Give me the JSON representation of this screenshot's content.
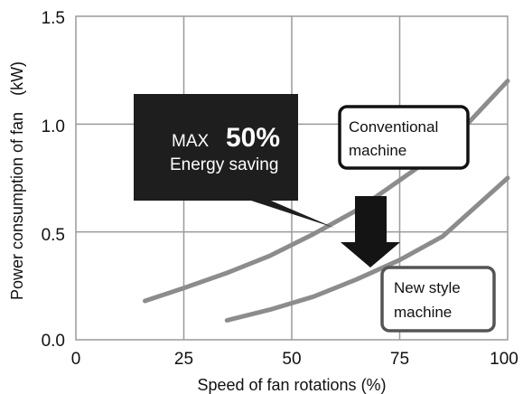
{
  "chart_data": {
    "type": "line",
    "title": "",
    "xlabel": "Speed of fan rotations (%)",
    "ylabel": "Power consumption of fan　(kW)",
    "xlim": [
      0,
      100
    ],
    "ylim": [
      0,
      1.5
    ],
    "x_ticks": [
      "0",
      "25",
      "50",
      "75",
      "100"
    ],
    "y_ticks": [
      "0.0",
      "0.5",
      "1.0",
      "1.5"
    ],
    "grid": true,
    "series": [
      {
        "name": "Conventional machine",
        "color": "#8c8c8c",
        "x": [
          16,
          25,
          35,
          45,
          55,
          65,
          75,
          85,
          100
        ],
        "y": [
          0.18,
          0.24,
          0.31,
          0.39,
          0.49,
          0.6,
          0.74,
          0.88,
          1.2
        ]
      },
      {
        "name": "New style machine",
        "color": "#8c8c8c",
        "x": [
          35,
          45,
          55,
          65,
          75,
          85,
          100
        ],
        "y": [
          0.09,
          0.14,
          0.2,
          0.28,
          0.37,
          0.48,
          0.75
        ]
      }
    ],
    "annotations": {
      "callout_prefix": "MAX",
      "callout_value": "50%",
      "callout_text": "Energy saving",
      "conventional_label_line1": "Conventional",
      "conventional_label_line2": "machine",
      "new_label_line1": "New style",
      "new_label_line2": "machine"
    },
    "colors": {
      "curve": "#8c8c8c",
      "grid": "#9a9a9a",
      "callout_fill": "#1e1e1e",
      "arrow_fill": "#141414"
    }
  }
}
